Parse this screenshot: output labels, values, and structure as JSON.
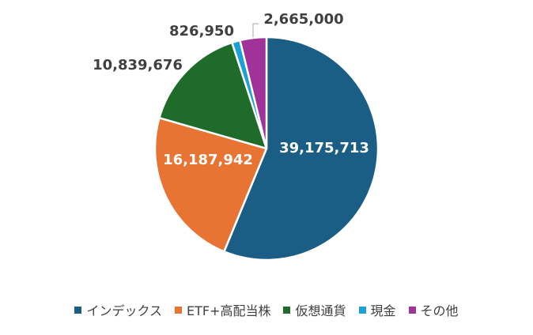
{
  "chart_data": {
    "type": "pie",
    "categories": [
      "インデックス",
      "ETF+高配当株",
      "仮想通貨",
      "現金",
      "その他"
    ],
    "values": [
      39175713,
      16187942,
      10839676,
      826950,
      2665000
    ],
    "data_labels": [
      "39,175,713",
      "16,187,942",
      "10,839,676",
      "826,950",
      "2,665,000"
    ],
    "colors": [
      "#1a5e85",
      "#e87434",
      "#1f6b2a",
      "#1ba1d6",
      "#a0339a"
    ],
    "legend_position": "bottom"
  }
}
